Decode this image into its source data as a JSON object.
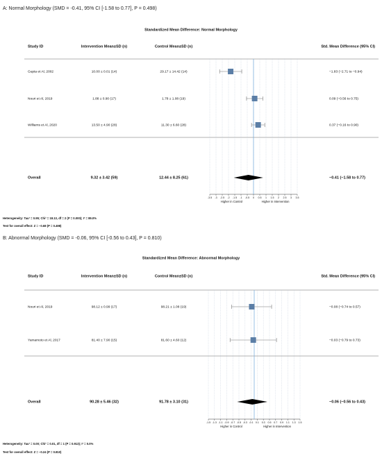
{
  "chart_data": [
    {
      "type": "forest",
      "heading": "A: Normal Morphology (SMD = -0.41, 95% CI [-1.58 to 0.77], P = 0.498)",
      "title": "Standardized Mean Difference: Normal Morphology",
      "columns": [
        "Study ID",
        "Intervention Mean±SD (n)",
        "Control Mean±SD (n)",
        "Std. Mean Difference  (95% CI)"
      ],
      "studies": [
        {
          "name": "Gupta et Al, 2002",
          "intervention": "10.00 ± 0.01 (14)",
          "control": "29.17 ± 14.42 (14)",
          "smd": -1.83,
          "ci": [
            -2.71,
            -0.94
          ],
          "smd_label": "−1.83 (−2.71 to −0.94)"
        },
        {
          "name": "Nouri et Al, 2019",
          "intervention": "1.88 ± 0.90 (17)",
          "control": "1.78 ± 1.08 (19)",
          "smd": 0.09,
          "ci": [
            -0.56,
            0.75
          ],
          "smd_label": "0.09 (−0.56 to 0.75)"
        },
        {
          "name": "Williams et Al, 2020",
          "intervention": "13.50 ± 4.90 (28)",
          "control": "11.30 ± 6.60 (28)",
          "smd": 0.37,
          "ci": [
            -0.16,
            0.9
          ],
          "smd_label": "0.37 (−0.16 to 0.90)"
        }
      ],
      "overall": {
        "name": "Overall",
        "intervention": "9.32 ± 3.42 (59)",
        "control": "12.44 ± 8.25 (61)",
        "smd": -0.41,
        "ci": [
          -1.58,
          0.77
        ],
        "smd_label": "−0.41 (−1.58 to 0.77)"
      },
      "xlim": [
        -3.5,
        3.5
      ],
      "xticks": [
        -3.5,
        -3,
        -2.5,
        -2,
        -1.5,
        -1,
        -0.5,
        0,
        0.5,
        1,
        1.5,
        2,
        2.5,
        3,
        3.5
      ],
      "xlabels": [
        "Higher in Control",
        "Higher in Intervention"
      ],
      "heterogeneity": "Heterogeneity: Tau² = 0.95; Chi² = 18.13, df = 2 (P = 0.000); I² = 89.0%",
      "overall_test": "Test for overall effect: Z = −0.68 (P = 0.498)",
      "color": "#5b7ea6",
      "diamond_color": "#000000",
      "grid": true
    },
    {
      "type": "forest",
      "heading": "B: Abnormal Morphology (SMD = -0.06, 95% CI [-0.56 to 0.43], P = 0.810)",
      "title": "Standardized Mean Difference: Abnormal Morphology",
      "columns": [
        "Study ID",
        "Intervention Mean±SD (n)",
        "Control Mean±SD (n)",
        "Std. Mean Difference  (95% CI)"
      ],
      "studies": [
        {
          "name": "Nouri et Al, 2019",
          "intervention": "98.12 ± 0.99 (17)",
          "control": "98.21 ± 1.08 (19)",
          "smd": -0.08,
          "ci": [
            -0.74,
            0.57
          ],
          "smd_label": "−0.08 (−0.74 to 0.57)"
        },
        {
          "name": "Yamamoto et Al, 2017",
          "intervention": "81.40 ± 7.90 (15)",
          "control": "81.60 ± 4.60 (12)",
          "smd": -0.03,
          "ci": [
            -0.79,
            0.73
          ],
          "smd_label": "−0.03 (−0.79 to 0.73)"
        }
      ],
      "overall": {
        "name": "Overall",
        "intervention": "90.28 ± 5.46 (32)",
        "control": "91.78 ± 3.10 (31)",
        "smd": -0.06,
        "ci": [
          -0.56,
          0.43
        ],
        "smd_label": "−0.06 (−0.56 to 0.43)"
      },
      "xlim": [
        -1.5,
        1.5
      ],
      "xticks": [
        -1.5,
        -1.3,
        -1.1,
        -0.9,
        -0.7,
        -0.5,
        -0.3,
        -0.1,
        0.1,
        0.3,
        0.5,
        0.7,
        0.9,
        1.1,
        1.3,
        1.5
      ],
      "xlabels": [
        "Higher in Control",
        "Higher in Intervention"
      ],
      "heterogeneity": "Heterogeneity: Tau² = 0.00; Chi² = 0.01, df = 1 (P = 0.913); I² = 0.0%",
      "overall_test": "Test for overall effect: Z = −0.24 (P = 0.810)",
      "color": "#5b7ea6",
      "diamond_color": "#000000",
      "grid": true
    }
  ]
}
